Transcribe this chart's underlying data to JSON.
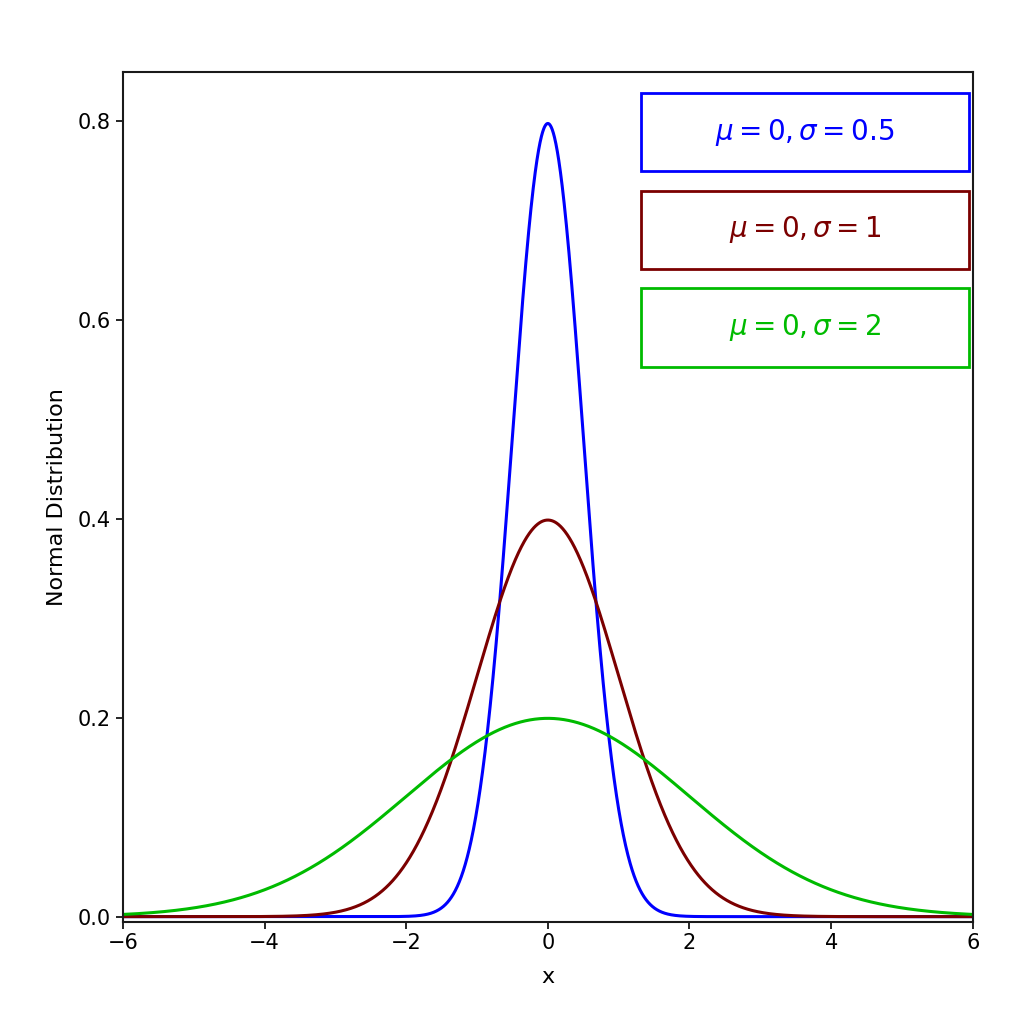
{
  "xlabel": "x",
  "ylabel": "Normal Distribution",
  "xlim": [
    -6,
    6
  ],
  "ylim": [
    -0.005,
    0.85
  ],
  "distributions": [
    {
      "mu": 0,
      "sigma": 0.5,
      "color": "#0000FF"
    },
    {
      "mu": 0,
      "sigma": 1,
      "color": "#7B0000"
    },
    {
      "mu": 0,
      "sigma": 2,
      "color": "#00BB00"
    }
  ],
  "line_width": 2.2,
  "yticks": [
    0.0,
    0.2,
    0.4,
    0.6,
    0.8
  ],
  "xticks": [
    -6,
    -4,
    -2,
    0,
    2,
    4,
    6
  ],
  "background_color": "#FFFFFF",
  "legend_items": [
    {
      "label": "$\\mu = 0, \\sigma = 0.5$",
      "color": "#0000FF"
    },
    {
      "label": "$\\mu = 0, \\sigma = 1$",
      "color": "#7B0000"
    },
    {
      "label": "$\\mu = 0, \\sigma = 2$",
      "color": "#00BB00"
    }
  ],
  "legend_fontsize": 20,
  "axis_label_fontsize": 16,
  "tick_fontsize": 15
}
